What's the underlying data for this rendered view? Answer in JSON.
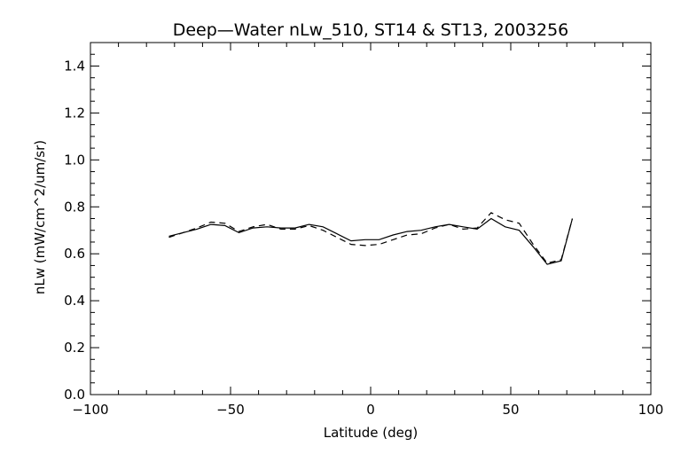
{
  "chart_data": {
    "type": "line",
    "title": "Deep—Water nLw_510, ST14 & ST13, 2003256",
    "xlabel": "Latitude (deg)",
    "ylabel": "nLw (mW/cm^2/um/sr)",
    "xlim": [
      -100,
      100
    ],
    "ylim": [
      0.0,
      1.5
    ],
    "xticks": [
      -100,
      -50,
      0,
      50,
      100
    ],
    "xtick_labels": [
      "−100",
      "−50",
      "0",
      "50",
      "100"
    ],
    "yticks": [
      0.0,
      0.2,
      0.4,
      0.6,
      0.8,
      1.0,
      1.2,
      1.4
    ],
    "ytick_labels": [
      "0.0",
      "0.2",
      "0.4",
      "0.6",
      "0.8",
      "1.0",
      "1.2",
      "1.4"
    ],
    "grid": false,
    "series": [
      {
        "style": "solid",
        "color": "#000000",
        "x": [
          -72,
          -67,
          -62,
          -57,
          -52,
          -47,
          -42,
          -37,
          -32,
          -27,
          -22,
          -17,
          -12,
          -7,
          -2,
          3,
          8,
          13,
          18,
          23,
          28,
          33,
          38,
          43,
          48,
          53,
          58,
          63,
          68,
          72
        ],
        "y": [
          0.675,
          0.69,
          0.705,
          0.725,
          0.72,
          0.69,
          0.71,
          0.715,
          0.71,
          0.71,
          0.725,
          0.715,
          0.685,
          0.655,
          0.66,
          0.66,
          0.68,
          0.695,
          0.7,
          0.715,
          0.725,
          0.715,
          0.705,
          0.75,
          0.715,
          0.7,
          0.63,
          0.555,
          0.57,
          0.75
        ]
      },
      {
        "style": "dashed",
        "color": "#000000",
        "x": [
          -72,
          -67,
          -62,
          -57,
          -52,
          -47,
          -42,
          -37,
          -32,
          -27,
          -22,
          -17,
          -12,
          -7,
          -2,
          3,
          8,
          13,
          18,
          23,
          28,
          33,
          38,
          43,
          48,
          53,
          58,
          63,
          68,
          72
        ],
        "y": [
          0.67,
          0.69,
          0.71,
          0.735,
          0.73,
          0.695,
          0.715,
          0.725,
          0.705,
          0.705,
          0.72,
          0.7,
          0.67,
          0.64,
          0.635,
          0.64,
          0.66,
          0.68,
          0.685,
          0.71,
          0.725,
          0.705,
          0.71,
          0.775,
          0.745,
          0.73,
          0.64,
          0.56,
          0.575,
          0.75
        ]
      }
    ]
  }
}
